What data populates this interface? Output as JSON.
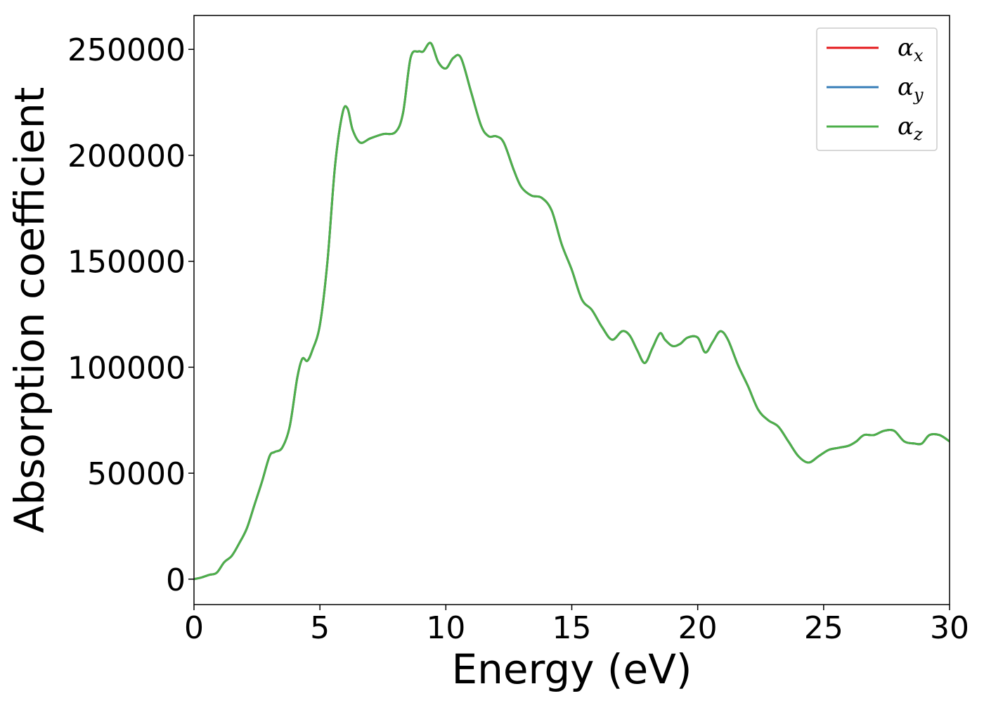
{
  "chart_data": {
    "type": "line",
    "title": "",
    "xlabel": "Energy (eV)",
    "ylabel": "Absorption coefficient",
    "xlim": [
      0,
      30
    ],
    "ylim": [
      -12000,
      266000
    ],
    "x_ticks": [
      0,
      5,
      10,
      15,
      20,
      25,
      30
    ],
    "x_tick_labels": [
      "0",
      "5",
      "10",
      "15",
      "20",
      "25",
      "30"
    ],
    "y_ticks": [
      0,
      50000,
      100000,
      150000,
      200000,
      250000
    ],
    "y_tick_labels": [
      "0",
      "50000",
      "100000",
      "150000",
      "200000",
      "250000"
    ],
    "grid": false,
    "legend_position": "top-right",
    "x": [
      0,
      0.3,
      0.6,
      0.9,
      1.2,
      1.5,
      1.8,
      2.1,
      2.4,
      2.7,
      3.0,
      3.2,
      3.5,
      3.8,
      4.1,
      4.3,
      4.5,
      4.7,
      5.0,
      5.3,
      5.6,
      5.9,
      6.1,
      6.3,
      6.6,
      7.0,
      7.5,
      8.0,
      8.3,
      8.6,
      8.9,
      9.1,
      9.4,
      9.7,
      10.0,
      10.3,
      10.6,
      11.0,
      11.4,
      11.7,
      12.0,
      12.3,
      12.7,
      13.0,
      13.4,
      13.8,
      14.2,
      14.6,
      15.0,
      15.4,
      15.8,
      16.2,
      16.6,
      17.0,
      17.3,
      17.6,
      17.9,
      18.2,
      18.5,
      18.7,
      19.0,
      19.3,
      19.6,
      20.0,
      20.3,
      20.6,
      20.9,
      21.2,
      21.6,
      22.0,
      22.4,
      22.8,
      23.2,
      23.6,
      24.0,
      24.4,
      24.8,
      25.2,
      25.6,
      26.0,
      26.3,
      26.6,
      27.0,
      27.4,
      27.8,
      28.2,
      28.6,
      28.9,
      29.2,
      29.6,
      30.0
    ],
    "series": [
      {
        "name": "α_x",
        "color": "#e41a1c",
        "values": [
          0,
          800,
          2000,
          3000,
          8000,
          11000,
          17000,
          24000,
          35000,
          46000,
          58000,
          60000,
          62000,
          72000,
          95000,
          104000,
          103000,
          108000,
          120000,
          150000,
          195000,
          220000,
          222000,
          212000,
          206000,
          208000,
          210000,
          211000,
          220000,
          246000,
          249000,
          249000,
          253000,
          244000,
          241000,
          246000,
          246000,
          230000,
          214000,
          209000,
          209000,
          206000,
          193000,
          185000,
          181000,
          180000,
          174000,
          158000,
          146000,
          132000,
          127000,
          119000,
          113000,
          117000,
          115000,
          108000,
          102000,
          109000,
          116000,
          113000,
          110000,
          111000,
          114000,
          114000,
          107000,
          112000,
          117000,
          113000,
          101000,
          91000,
          80000,
          75000,
          72000,
          65000,
          58000,
          55000,
          58000,
          61000,
          62000,
          63000,
          65000,
          68000,
          68000,
          70000,
          70000,
          65000,
          64000,
          64000,
          68000,
          68000,
          65000
        ]
      },
      {
        "name": "α_y",
        "color": "#377eb8",
        "values": [
          0,
          800,
          2000,
          3000,
          8000,
          11000,
          17000,
          24000,
          35000,
          46000,
          58000,
          60000,
          62000,
          72000,
          95000,
          104000,
          103000,
          108000,
          120000,
          150000,
          195000,
          220000,
          222000,
          212000,
          206000,
          208000,
          210000,
          211000,
          220000,
          246000,
          249000,
          249000,
          253000,
          244000,
          241000,
          246000,
          246000,
          230000,
          214000,
          209000,
          209000,
          206000,
          193000,
          185000,
          181000,
          180000,
          174000,
          158000,
          146000,
          132000,
          127000,
          119000,
          113000,
          117000,
          115000,
          108000,
          102000,
          109000,
          116000,
          113000,
          110000,
          111000,
          114000,
          114000,
          107000,
          112000,
          117000,
          113000,
          101000,
          91000,
          80000,
          75000,
          72000,
          65000,
          58000,
          55000,
          58000,
          61000,
          62000,
          63000,
          65000,
          68000,
          68000,
          70000,
          70000,
          65000,
          64000,
          64000,
          68000,
          68000,
          65000
        ]
      },
      {
        "name": "α_z",
        "color": "#4daf4a",
        "values": [
          0,
          800,
          2000,
          3000,
          8000,
          11000,
          17000,
          24000,
          35000,
          46000,
          58000,
          60000,
          62000,
          72000,
          95000,
          104000,
          103000,
          108000,
          120000,
          150000,
          195000,
          220000,
          222000,
          212000,
          206000,
          208000,
          210000,
          211000,
          220000,
          246000,
          249000,
          249000,
          253000,
          244000,
          241000,
          246000,
          246000,
          230000,
          214000,
          209000,
          209000,
          206000,
          193000,
          185000,
          181000,
          180000,
          174000,
          158000,
          146000,
          132000,
          127000,
          119000,
          113000,
          117000,
          115000,
          108000,
          102000,
          109000,
          116000,
          113000,
          110000,
          111000,
          114000,
          114000,
          107000,
          112000,
          117000,
          113000,
          101000,
          91000,
          80000,
          75000,
          72000,
          65000,
          58000,
          55000,
          58000,
          61000,
          62000,
          63000,
          65000,
          68000,
          68000,
          70000,
          70000,
          65000,
          64000,
          64000,
          68000,
          68000,
          65000
        ]
      }
    ],
    "legend": [
      {
        "symbol": "α",
        "sub": "x",
        "color": "#e41a1c"
      },
      {
        "symbol": "α",
        "sub": "y",
        "color": "#377eb8"
      },
      {
        "symbol": "α",
        "sub": "z",
        "color": "#4daf4a"
      }
    ]
  }
}
